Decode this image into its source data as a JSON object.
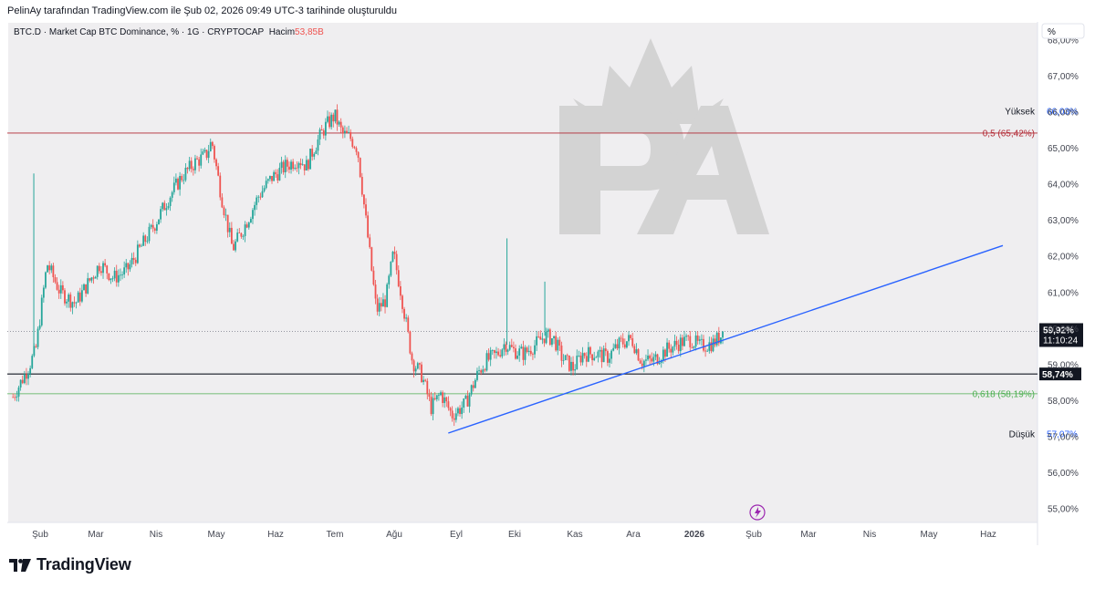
{
  "credit": "PelinAy tarafından TradingView.com ile Şub 02, 2026 09:49 UTC-3 tarihinde oluşturuldu",
  "header": {
    "symbol": "BTC.D · Market Cap BTC Dominance, % · 1G · CRYPTOCAP",
    "volume_label": "Hacim",
    "volume_value": "53,85B"
  },
  "axis": {
    "unit_button": "%"
  },
  "footer": {
    "brand": "TradingView"
  },
  "colors": {
    "up": "#26a69a",
    "down": "#ef5350",
    "trendline": "#2962ff",
    "fib_05": "#b22833",
    "fib_0618": "#4caf50",
    "watermark": "#bdbdbd"
  },
  "chart_data": {
    "type": "candlestick",
    "title": "BTC.D · Market Cap BTC Dominance, % · 1G · CRYPTOCAP",
    "ylim": [
      54.8,
      68.3
    ],
    "x_ticks": [
      "Şub",
      "Mar",
      "Nis",
      "May",
      "Haz",
      "Tem",
      "Ağu",
      "Eyl",
      "Eki",
      "Kas",
      "Ara",
      "2026",
      "Şub",
      "Mar",
      "Nis",
      "May",
      "Haz"
    ],
    "y_ticks": [
      "55,00%",
      "56,00%",
      "57,00%",
      "58,00%",
      "59,00%",
      "60,00%",
      "61,00%",
      "62,00%",
      "63,00%",
      "64,00%",
      "65,00%",
      "66,00%",
      "67,00%",
      "68,00%"
    ],
    "close_series": {
      "x": [
        "2025-01-23",
        "2025-01-31",
        "2025-02-04",
        "2025-02-10",
        "2025-02-17",
        "2025-02-25",
        "2025-03-03",
        "2025-03-10",
        "2025-03-17",
        "2025-03-24",
        "2025-03-31",
        "2025-04-08",
        "2025-04-15",
        "2025-04-22",
        "2025-04-29",
        "2025-05-05",
        "2025-05-08",
        "2025-05-13",
        "2025-05-19",
        "2025-05-25",
        "2025-06-02",
        "2025-06-09",
        "2025-06-16",
        "2025-06-23",
        "2025-06-27",
        "2025-07-01",
        "2025-07-07",
        "2025-07-12",
        "2025-07-16",
        "2025-07-20",
        "2025-07-24",
        "2025-07-28",
        "2025-08-03",
        "2025-08-08",
        "2025-08-12",
        "2025-08-16",
        "2025-08-22",
        "2025-08-27",
        "2025-09-01",
        "2025-09-06",
        "2025-09-12",
        "2025-09-19",
        "2025-09-26",
        "2025-09-30",
        "2025-10-06",
        "2025-10-10",
        "2025-10-14",
        "2025-10-20",
        "2025-10-27",
        "2025-10-31",
        "2025-11-05",
        "2025-11-09",
        "2025-11-15",
        "2025-11-20",
        "2025-11-27",
        "2025-12-03",
        "2025-12-10",
        "2025-12-16",
        "2025-12-21",
        "2025-12-27",
        "2026-01-03",
        "2026-01-10",
        "2026-01-16",
        "2026-01-21",
        "2026-01-28",
        "2026-02-01",
        "2026-02-02"
      ],
      "y": [
        58.1,
        58.9,
        59.4,
        61.8,
        61.0,
        60.7,
        61.2,
        61.8,
        61.4,
        61.6,
        62.2,
        62.9,
        63.6,
        64.2,
        64.6,
        64.8,
        65.2,
        63.7,
        62.2,
        62.8,
        63.7,
        64.2,
        64.5,
        64.7,
        64.5,
        65.0,
        65.6,
        65.9,
        65.4,
        65.3,
        65.0,
        63.2,
        60.5,
        60.8,
        62.1,
        61.0,
        59.1,
        58.7,
        57.8,
        58.2,
        57.6,
        57.9,
        58.8,
        59.1,
        59.3,
        59.6,
        59.4,
        59.3,
        59.6,
        59.8,
        59.7,
        59.2,
        58.9,
        59.3,
        59.3,
        59.2,
        59.6,
        59.7,
        59.1,
        59.1,
        59.4,
        59.6,
        59.7,
        59.5,
        59.6,
        59.8,
        59.92
      ]
    },
    "spikes": [
      {
        "x": "2025-02-03",
        "high": 64.3
      },
      {
        "x": "2025-10-11",
        "high": 62.5
      },
      {
        "x": "2025-10-31",
        "high": 61.3
      }
    ],
    "last_value": "59,92%",
    "countdown": "11:10:24",
    "horizontal_level": {
      "value": 58.74,
      "label": "58,74%"
    },
    "fib_levels": [
      {
        "label": "0,5 (65,42%)",
        "value": 65.42
      },
      {
        "label": "0,618 (58,19%)",
        "value": 58.19
      }
    ],
    "high": {
      "label": "Yüksek",
      "value": "66,03%",
      "y": 66.03
    },
    "low": {
      "label": "Düşük",
      "value": "57,07%",
      "y": 57.07
    },
    "trendline": {
      "start": {
        "x": "2025-09-10",
        "y": 57.1
      },
      "end": {
        "x": "2026-06-30",
        "y": 62.3
      }
    }
  }
}
